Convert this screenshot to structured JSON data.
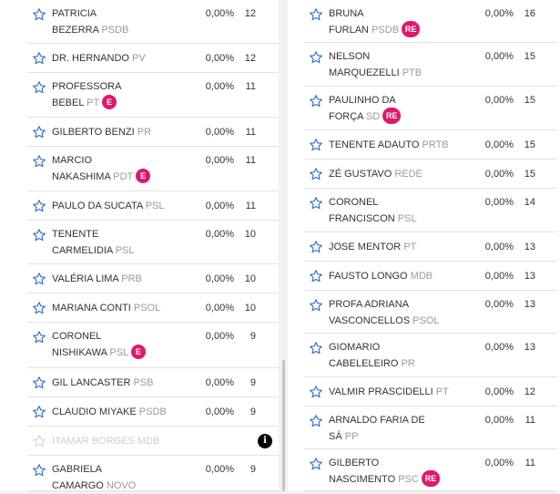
{
  "left": [
    {
      "l1": "PATRICIA",
      "l2": "BEZERRA",
      "party": "PSDB",
      "pct": "0,00%",
      "votes": "12",
      "badge": ""
    },
    {
      "l1": "DR. HERNANDO",
      "l2": "",
      "party": "PV",
      "pct": "0,00%",
      "votes": "12",
      "badge": ""
    },
    {
      "l1": "PROFESSORA",
      "l2": "BEBEL",
      "party": "PT",
      "pct": "0,00%",
      "votes": "11",
      "badge": "E"
    },
    {
      "l1": "GILBERTO BENZI",
      "l2": "",
      "party": "PR",
      "pct": "0,00%",
      "votes": "11",
      "badge": ""
    },
    {
      "l1": "MARCIO",
      "l2": "NAKASHIMA",
      "party": "PDT",
      "pct": "0,00%",
      "votes": "11",
      "badge": "E"
    },
    {
      "l1": "PAULO DA SUCATA",
      "l2": "",
      "party": "PSL",
      "pct": "0,00%",
      "votes": "11",
      "badge": ""
    },
    {
      "l1": "TENENTE",
      "l2": "CARMELIDIA",
      "party": "PSL",
      "pct": "0,00%",
      "votes": "10",
      "badge": ""
    },
    {
      "l1": "VALÉRIA LIMA",
      "l2": "",
      "party": "PRB",
      "pct": "0,00%",
      "votes": "10",
      "badge": ""
    },
    {
      "l1": "MARIANA CONTI",
      "l2": "",
      "party": "PSOL",
      "pct": "0,00%",
      "votes": "10",
      "badge": ""
    },
    {
      "l1": "CORONEL",
      "l2": "NISHIKAWA",
      "party": "PSL",
      "pct": "0,00%",
      "votes": "9",
      "badge": "E"
    },
    {
      "l1": "GIL LANCASTER",
      "l2": "",
      "party": "PSB",
      "pct": "0,00%",
      "votes": "9",
      "badge": ""
    },
    {
      "l1": "CLAUDIO MIYAKE",
      "l2": "",
      "party": "PSDB",
      "pct": "0,00%",
      "votes": "9",
      "badge": ""
    },
    {
      "l1": "ITAMAR BORGES",
      "l2": "",
      "party": "MDB",
      "pct": "",
      "votes": "",
      "badge": "",
      "disabled": true,
      "info_icon": "info-icon"
    },
    {
      "l1": "GABRIELA",
      "l2": "CAMARGO",
      "party": "NOVO",
      "pct": "0,00%",
      "votes": "9",
      "badge": ""
    }
  ],
  "right": [
    {
      "l1": "BRUNA",
      "l2": "FURLAN",
      "party": "PSDB",
      "pct": "0,00%",
      "votes": "16",
      "badge": "RE"
    },
    {
      "l1": "NELSON",
      "l2": "MARQUEZELLI",
      "party": "PTB",
      "pct": "0,00%",
      "votes": "15",
      "badge": ""
    },
    {
      "l1": "PAULINHO DA",
      "l2": "FORÇA",
      "party": "SD",
      "pct": "0,00%",
      "votes": "15",
      "badge": "RE"
    },
    {
      "l1": "TENENTE ADAUTO",
      "l2": "",
      "party": "PRTB",
      "pct": "0,00%",
      "votes": "15",
      "badge": ""
    },
    {
      "l1": "ZÉ GUSTAVO",
      "l2": "",
      "party": "REDE",
      "pct": "0,00%",
      "votes": "15",
      "badge": ""
    },
    {
      "l1": "CORONEL",
      "l2": "FRANCISCON",
      "party": "PSL",
      "pct": "0,00%",
      "votes": "14",
      "badge": ""
    },
    {
      "l1": "JOSE MENTOR",
      "l2": "",
      "party": "PT",
      "pct": "0,00%",
      "votes": "13",
      "badge": ""
    },
    {
      "l1": "FAUSTO LONGO",
      "l2": "",
      "party": "MDB",
      "pct": "0,00%",
      "votes": "13",
      "badge": ""
    },
    {
      "l1": "PROFA ADRIANA",
      "l2": "VASCONCELLOS",
      "party": "PSOL",
      "pct": "0,00%",
      "votes": "13",
      "badge": ""
    },
    {
      "l1": "GIOMARIO",
      "l2": "CABELELEIRO",
      "party": "PR",
      "pct": "0,00%",
      "votes": "13",
      "badge": ""
    },
    {
      "l1": "VALMIR PRASCIDELLI",
      "l2": "",
      "party": "PT",
      "pct": "0,00%",
      "votes": "12",
      "badge": ""
    },
    {
      "l1": "ARNALDO FARIA DE",
      "l2": "SÁ",
      "party": "PP",
      "pct": "0,00%",
      "votes": "11",
      "badge": ""
    },
    {
      "l1": "GILBERTO",
      "l2": "NASCIMENTO",
      "party": "PSC",
      "pct": "0,00%",
      "votes": "11",
      "badge": "RE"
    }
  ],
  "colors": {
    "star": "#2f6fd6",
    "star_disabled": "#d8d8d8",
    "badge": "#e0186c"
  },
  "icons": {
    "favorite": "star-icon",
    "info": "info-icon"
  }
}
